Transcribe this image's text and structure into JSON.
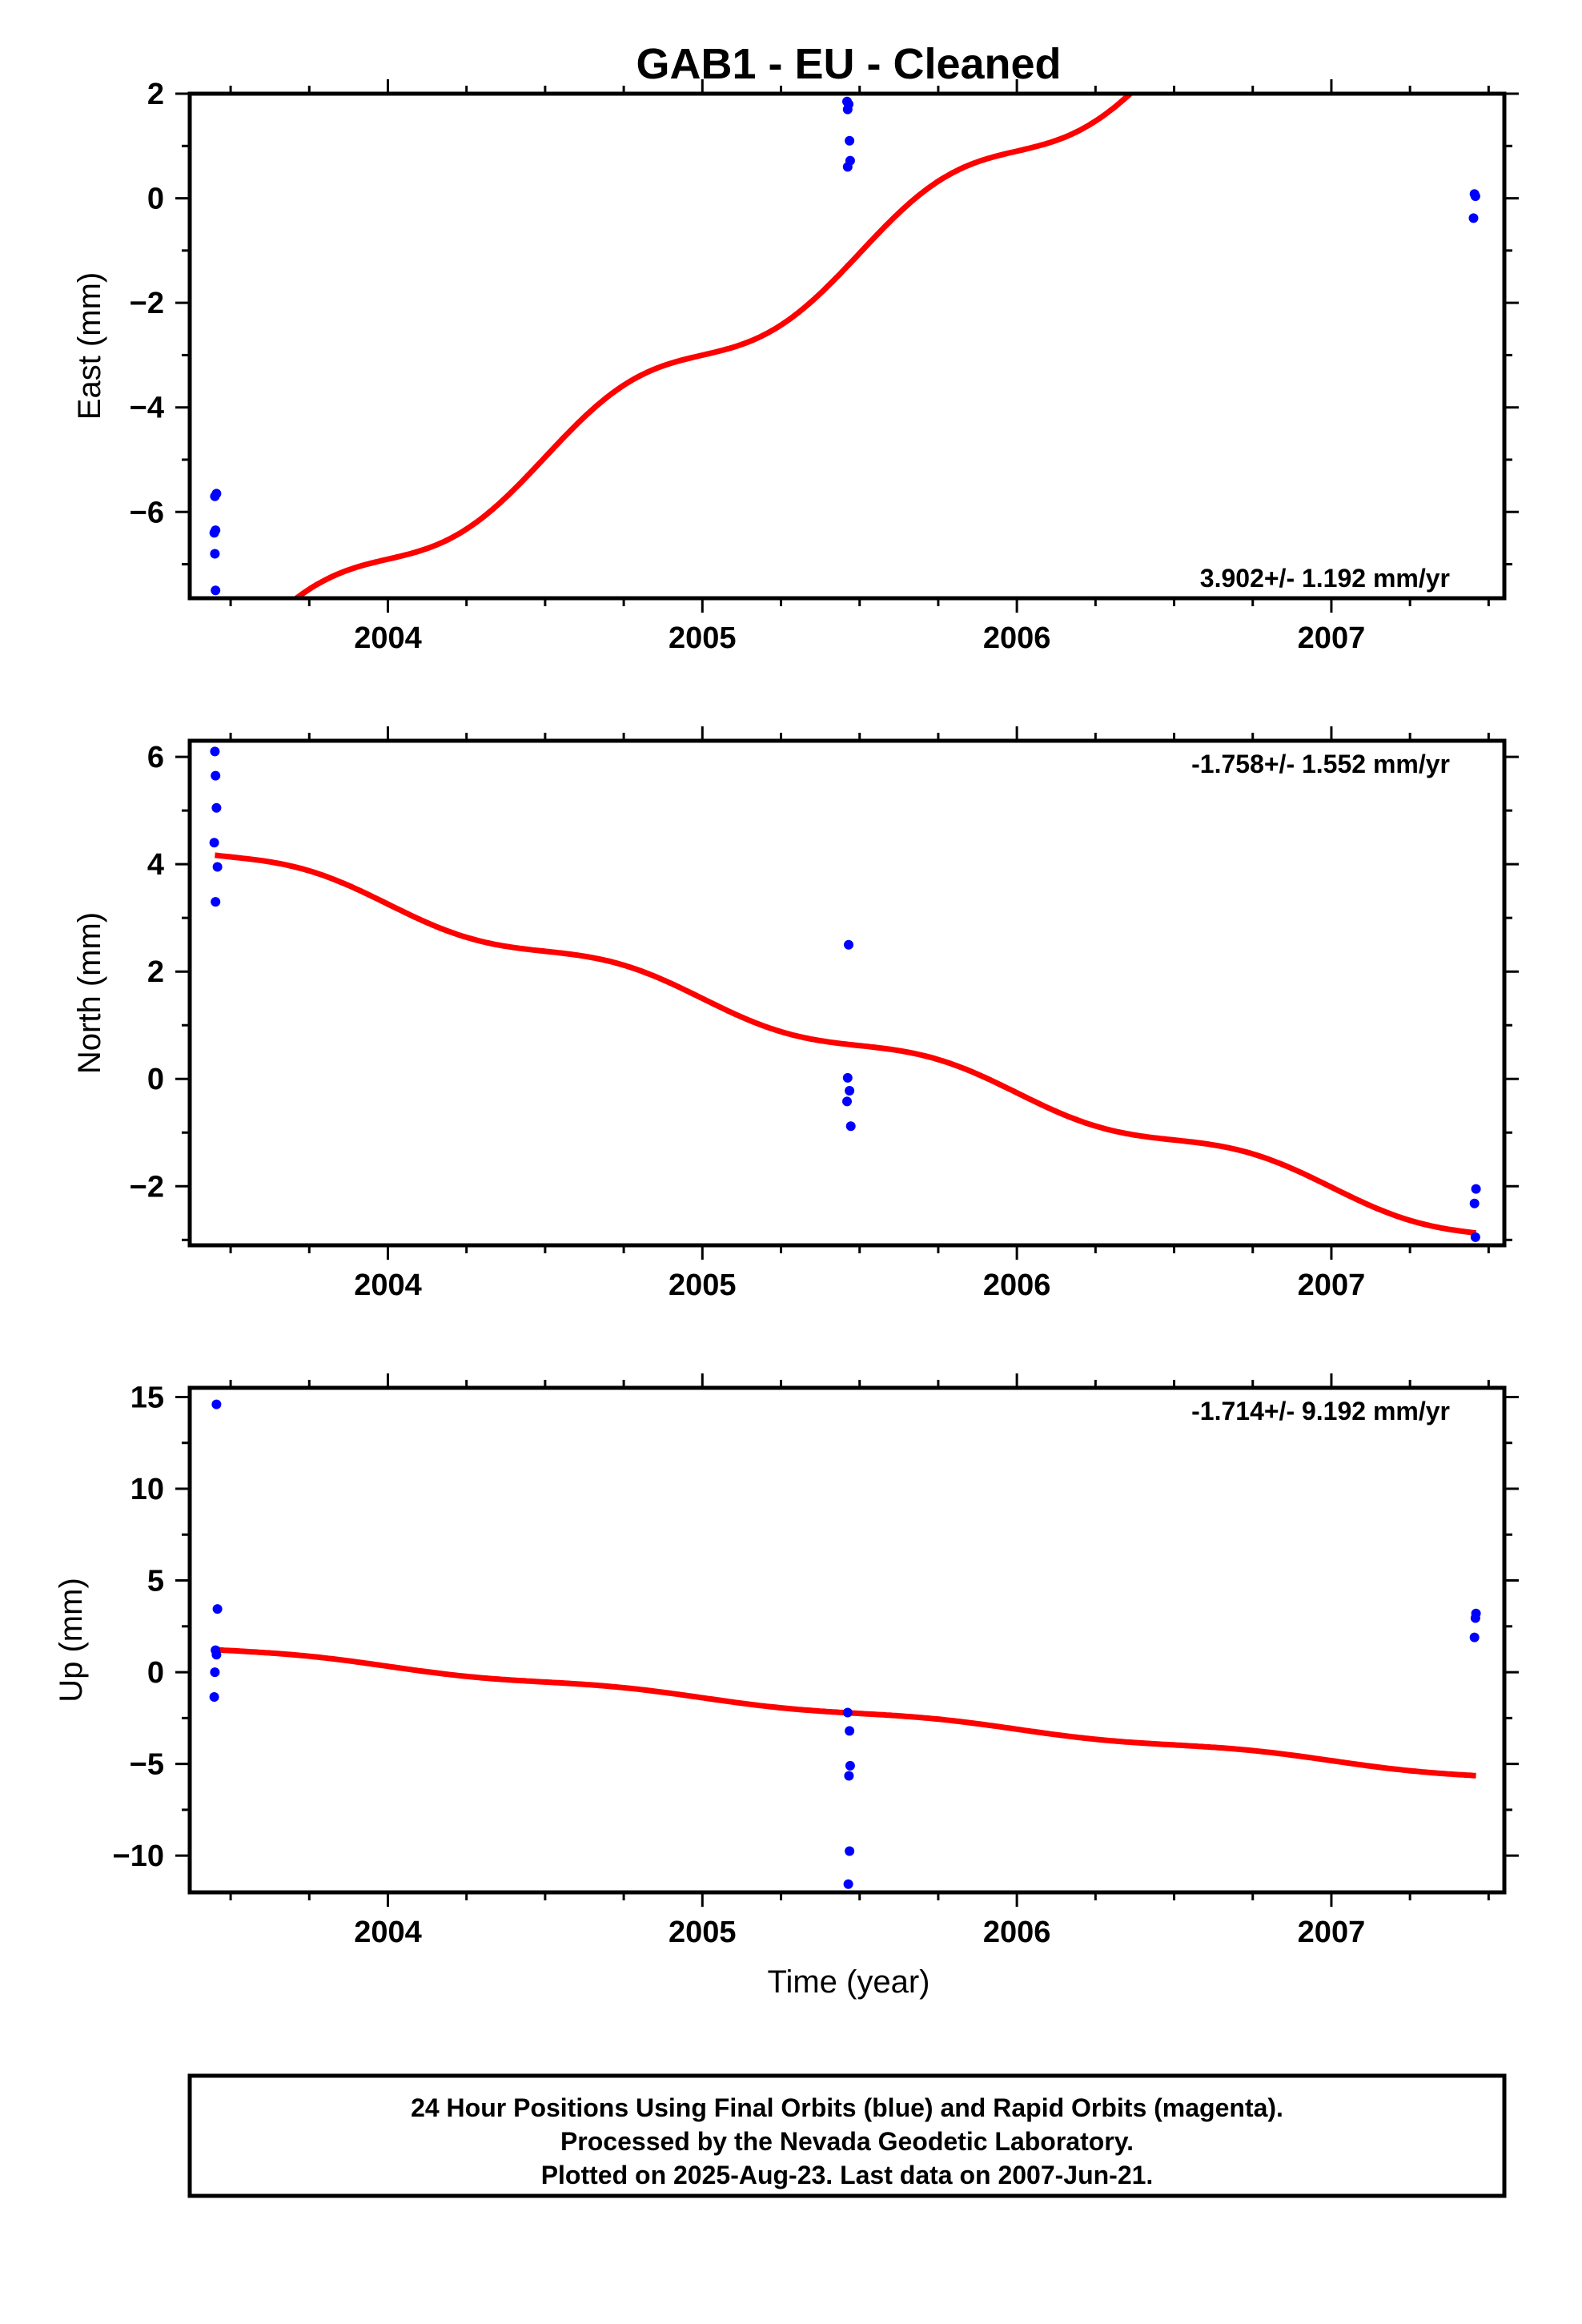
{
  "title": "GAB1  - EU - Cleaned",
  "colors": {
    "fit": "#ff0000",
    "points": "#0000ff",
    "frame": "#000000"
  },
  "footer": {
    "lines": [
      "24 Hour Positions Using Final Orbits (blue) and Rapid Orbits (magenta).",
      "Processed by the Nevada Geodetic Laboratory.",
      "Plotted on 2025-Aug-23. Last data on 2007-Jun-21."
    ]
  },
  "chart_data": [
    {
      "type": "scatter",
      "ylabel": "East (mm)",
      "xlabel": "",
      "rate_label": "3.902+/- 1.192 mm/yr",
      "rate_position": "bottom-right",
      "xlim": [
        2003.37,
        2007.55
      ],
      "ylim": [
        -7.65,
        2.0
      ],
      "xticks": [
        2004,
        2005,
        2006,
        2007
      ],
      "xtick_labels": [
        "2004",
        "2005",
        "2006",
        "2007"
      ],
      "yticks": [
        -6,
        -4,
        -2,
        0,
        2
      ],
      "ytick_labels": [
        "-6",
        "-4",
        "-2",
        "0",
        "2"
      ],
      "points": [
        [
          2003.455,
          -5.65
        ],
        [
          2003.45,
          -5.7
        ],
        [
          2003.452,
          -6.35
        ],
        [
          2003.448,
          -6.4
        ],
        [
          2003.45,
          -6.8
        ],
        [
          2003.452,
          -7.5
        ],
        [
          2005.46,
          1.85
        ],
        [
          2005.465,
          1.8
        ],
        [
          2005.462,
          1.7
        ],
        [
          2005.468,
          1.1
        ],
        [
          2005.47,
          0.72
        ],
        [
          2005.462,
          0.6
        ],
        [
          2007.455,
          0.08
        ],
        [
          2007.458,
          0.04
        ],
        [
          2007.452,
          -0.38
        ]
      ],
      "fit": {
        "start": 2003.45,
        "end": 2007.46,
        "slope": 3.902,
        "intercept_at": 2005.5,
        "intercept": -1.05,
        "amp_sin": -0.4,
        "amp_cos": 0.0
      }
    },
    {
      "type": "scatter",
      "ylabel": "North (mm)",
      "xlabel": "",
      "rate_label": "-1.758+/- 1.552 mm/yr",
      "rate_position": "top-right",
      "xlim": [
        2003.37,
        2007.55
      ],
      "ylim": [
        -3.1,
        6.3
      ],
      "xticks": [
        2004,
        2005,
        2006,
        2007
      ],
      "xtick_labels": [
        "2004",
        "2005",
        "2006",
        "2007"
      ],
      "yticks": [
        -2,
        0,
        2,
        4,
        6
      ],
      "ytick_labels": [
        "-2",
        "0",
        "2",
        "4",
        "6"
      ],
      "points": [
        [
          2003.45,
          6.1
        ],
        [
          2003.452,
          5.65
        ],
        [
          2003.455,
          5.05
        ],
        [
          2003.448,
          4.4
        ],
        [
          2003.458,
          3.95
        ],
        [
          2003.452,
          3.3
        ],
        [
          2005.465,
          2.5
        ],
        [
          2005.462,
          0.02
        ],
        [
          2005.468,
          -0.22
        ],
        [
          2005.46,
          -0.42
        ],
        [
          2005.472,
          -0.88
        ],
        [
          2007.46,
          -2.05
        ],
        [
          2007.455,
          -2.32
        ],
        [
          2007.458,
          -2.95
        ]
      ],
      "fit": {
        "start": 2003.45,
        "end": 2007.46,
        "slope": -1.758,
        "intercept_at": 2005.5,
        "intercept": 0.62,
        "amp_sin": -0.18,
        "amp_cos": 0.0
      }
    },
    {
      "type": "scatter",
      "ylabel": "Up (mm)",
      "xlabel": "Time (year)",
      "rate_label": "-1.714+/- 9.192 mm/yr",
      "rate_position": "top-right",
      "xlim": [
        2003.37,
        2007.55
      ],
      "ylim": [
        -12.0,
        15.5
      ],
      "xticks": [
        2004,
        2005,
        2006,
        2007
      ],
      "xtick_labels": [
        "2004",
        "2005",
        "2006",
        "2007"
      ],
      "yticks": [
        -10,
        -5,
        0,
        5,
        10,
        15
      ],
      "ytick_labels": [
        "-10",
        "-5",
        "0",
        "5",
        "10",
        "15"
      ],
      "points": [
        [
          2003.455,
          14.6
        ],
        [
          2003.458,
          3.45
        ],
        [
          2003.452,
          1.2
        ],
        [
          2003.455,
          0.95
        ],
        [
          2003.45,
          0.0
        ],
        [
          2003.448,
          -1.35
        ],
        [
          2005.462,
          -2.2
        ],
        [
          2005.468,
          -3.2
        ],
        [
          2005.47,
          -5.1
        ],
        [
          2005.466,
          -5.65
        ],
        [
          2005.468,
          -9.75
        ],
        [
          2005.464,
          -11.55
        ],
        [
          2007.46,
          3.2
        ],
        [
          2007.458,
          2.95
        ],
        [
          2007.455,
          1.9
        ]
      ],
      "fit": {
        "start": 2003.45,
        "end": 2007.46,
        "slope": -1.714,
        "intercept_at": 2005.5,
        "intercept": -2.25,
        "amp_sin": -0.12,
        "amp_cos": 0.0
      }
    }
  ]
}
